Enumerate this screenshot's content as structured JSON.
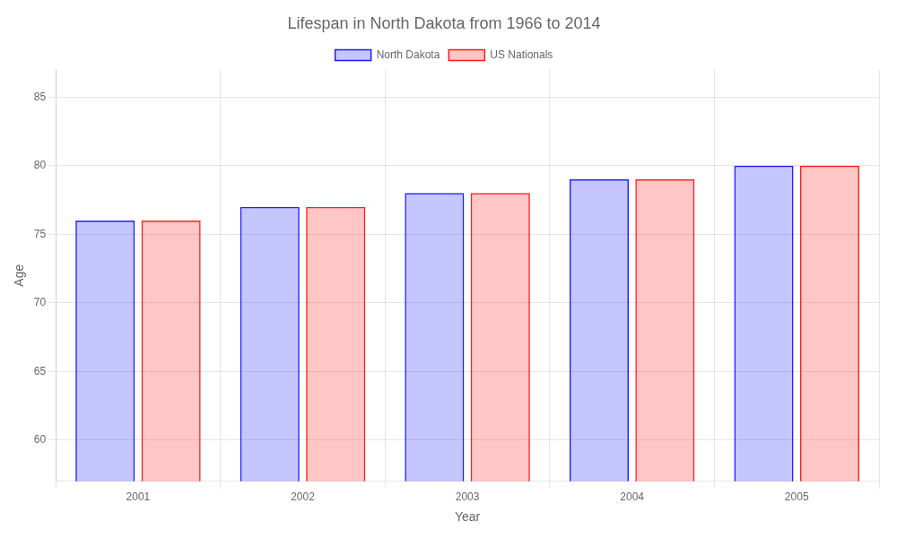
{
  "chart_data": {
    "type": "bar",
    "title": "Lifespan in North Dakota from 1966 to 2014",
    "xlabel": "Year",
    "ylabel": "Age",
    "categories": [
      "2001",
      "2002",
      "2003",
      "2004",
      "2005"
    ],
    "series": [
      {
        "name": "North Dakota",
        "color": "#1a1aff",
        "values": [
          76,
          77,
          78,
          79,
          80
        ]
      },
      {
        "name": "US Nationals",
        "color": "#ff1a1a",
        "values": [
          76,
          77,
          78,
          79,
          80
        ]
      }
    ],
    "ylim": [
      57,
      87
    ],
    "yticks": [
      60,
      65,
      70,
      75,
      80,
      85
    ],
    "grid": true,
    "legend": "top"
  }
}
